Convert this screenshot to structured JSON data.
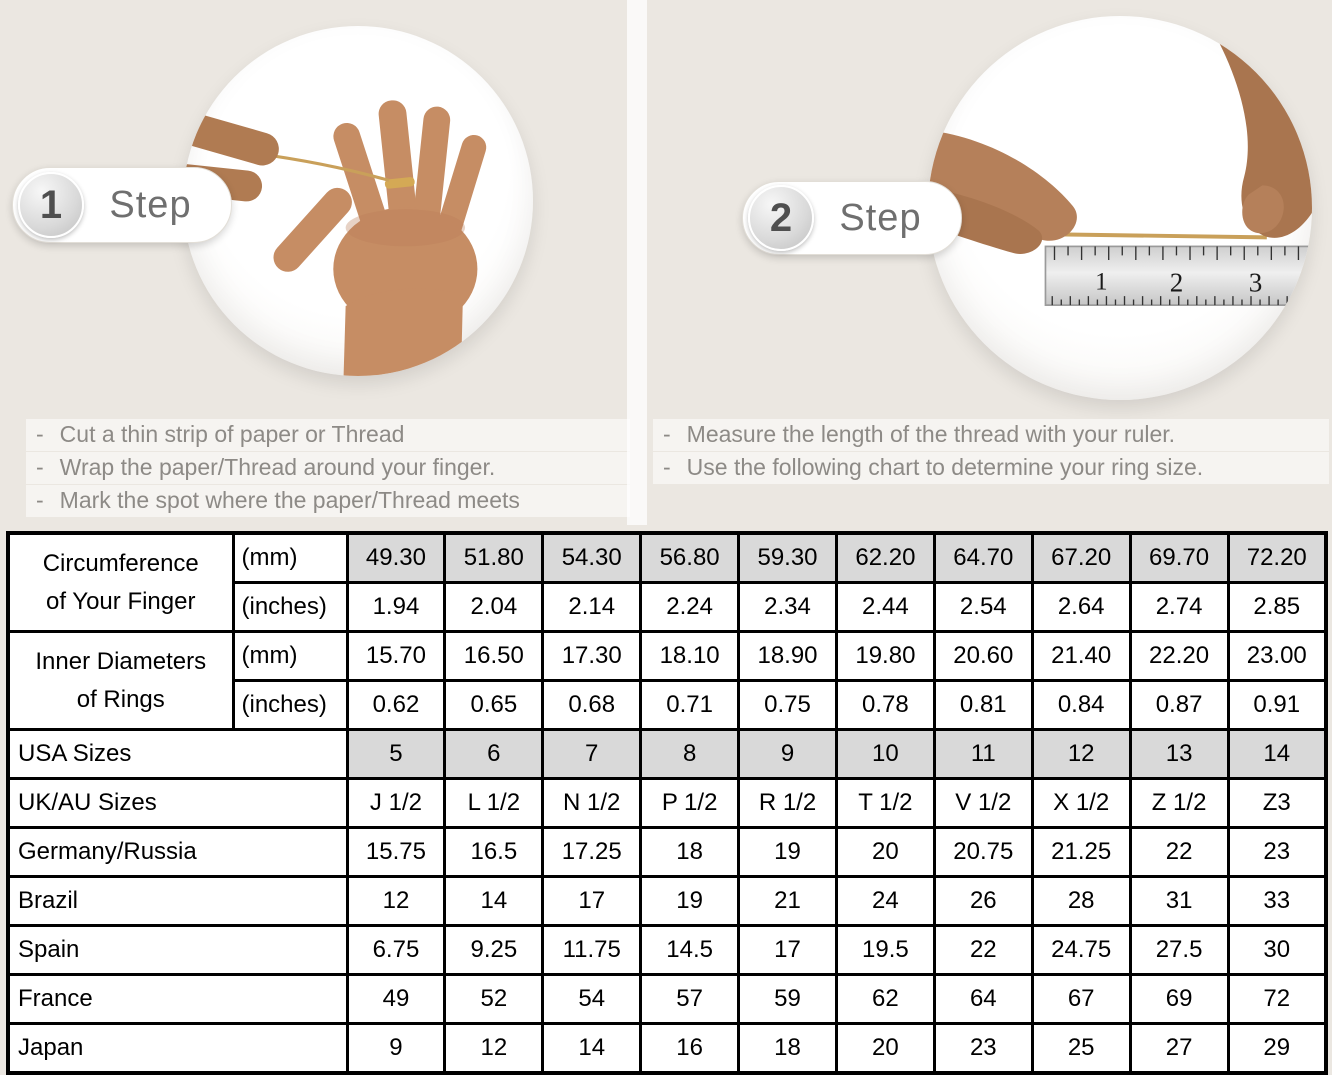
{
  "colors": {
    "page_bg": "#ebe7e1",
    "table_shaded": "#d9d9d9",
    "table_border": "#000000",
    "muted_text": "#8d8a86",
    "gold_thread": "#c9a05a"
  },
  "icons": {
    "step1_photo": "hand-with-ring-and-thread-photo",
    "step2_photo": "hands-measuring-thread-with-ruler-photo"
  },
  "steps": [
    {
      "number": "1",
      "label": "Step",
      "instructions": [
        "Cut a thin strip of paper or Thread",
        "Wrap the paper/Thread around your finger.",
        "Mark the spot where the paper/Thread meets"
      ]
    },
    {
      "number": "2",
      "label": "Step",
      "instructions": [
        "Measure the length of the thread with your ruler.",
        "Use the following chart to determine your ring size."
      ]
    }
  ],
  "ruler": {
    "numbers": [
      "1",
      "2",
      "3"
    ]
  },
  "size_chart": {
    "row_groups": [
      {
        "label_lines": [
          "Circumference",
          "of Your Finger"
        ],
        "rows": [
          {
            "unit": "(mm)",
            "shaded": true,
            "values": [
              "49.30",
              "51.80",
              "54.30",
              "56.80",
              "59.30",
              "62.20",
              "64.70",
              "67.20",
              "69.70",
              "72.20"
            ]
          },
          {
            "unit": "(inches)",
            "shaded": false,
            "values": [
              "1.94",
              "2.04",
              "2.14",
              "2.24",
              "2.34",
              "2.44",
              "2.54",
              "2.64",
              "2.74",
              "2.85"
            ]
          }
        ]
      },
      {
        "label_lines": [
          "Inner Diameters",
          "of Rings"
        ],
        "rows": [
          {
            "unit": "(mm)",
            "shaded": false,
            "values": [
              "15.70",
              "16.50",
              "17.30",
              "18.10",
              "18.90",
              "19.80",
              "20.60",
              "21.40",
              "22.20",
              "23.00"
            ]
          },
          {
            "unit": "(inches)",
            "shaded": false,
            "values": [
              "0.62",
              "0.65",
              "0.68",
              "0.71",
              "0.75",
              "0.78",
              "0.81",
              "0.84",
              "0.87",
              "0.91"
            ]
          }
        ]
      }
    ],
    "simple_rows": [
      {
        "label": "USA Sizes",
        "shaded": true,
        "values": [
          "5",
          "6",
          "7",
          "8",
          "9",
          "10",
          "11",
          "12",
          "13",
          "14"
        ]
      },
      {
        "label": "UK/AU Sizes",
        "shaded": false,
        "values": [
          "J 1/2",
          "L 1/2",
          "N 1/2",
          "P 1/2",
          "R 1/2",
          "T 1/2",
          "V 1/2",
          "X 1/2",
          "Z 1/2",
          "Z3"
        ]
      },
      {
        "label": "Germany/Russia",
        "shaded": false,
        "values": [
          "15.75",
          "16.5",
          "17.25",
          "18",
          "19",
          "20",
          "20.75",
          "21.25",
          "22",
          "23"
        ]
      },
      {
        "label": "Brazil",
        "shaded": false,
        "values": [
          "12",
          "14",
          "17",
          "19",
          "21",
          "24",
          "26",
          "28",
          "31",
          "33"
        ]
      },
      {
        "label": "Spain",
        "shaded": false,
        "values": [
          "6.75",
          "9.25",
          "11.75",
          "14.5",
          "17",
          "19.5",
          "22",
          "24.75",
          "27.5",
          "30"
        ]
      },
      {
        "label": "France",
        "shaded": false,
        "values": [
          "49",
          "52",
          "54",
          "57",
          "59",
          "62",
          "64",
          "67",
          "69",
          "72"
        ]
      },
      {
        "label": "Japan",
        "shaded": false,
        "values": [
          "9",
          "12",
          "14",
          "16",
          "18",
          "20",
          "23",
          "25",
          "27",
          "29"
        ]
      }
    ]
  }
}
